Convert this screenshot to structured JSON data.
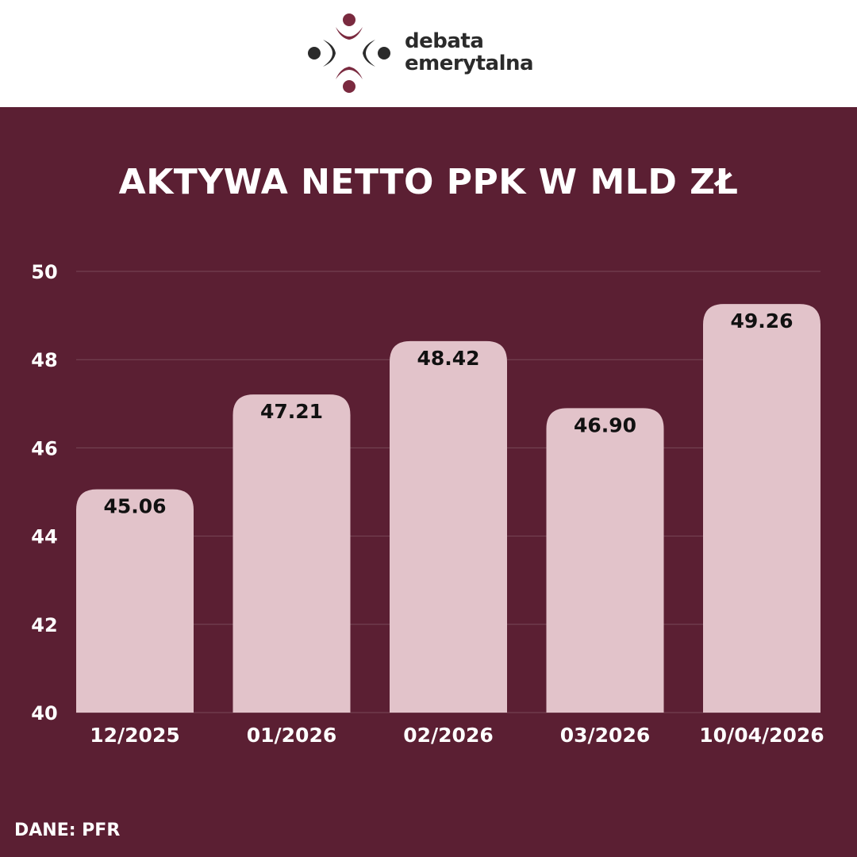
{
  "brand": {
    "line1": "debata",
    "line2": "emerytalna",
    "colors": {
      "maroon": "#7a2a3f",
      "dark": "#2b2b2b"
    }
  },
  "title": "AKTYWA NETTO PPK W MLD ZŁ",
  "source": "DANE: PFR",
  "colors": {
    "background": "#5b1f33",
    "bar": "#e2c3ca",
    "text": "#ffffff",
    "label": "#111111"
  },
  "chart_data": {
    "type": "bar",
    "title": "AKTYWA NETTO PPK W MLD ZŁ",
    "categories": [
      "12/2025",
      "01/2026",
      "02/2026",
      "03/2026",
      "10/04/2026"
    ],
    "values": [
      45.06,
      47.21,
      48.42,
      46.9,
      49.26
    ],
    "value_labels": [
      "45.06",
      "47.21",
      "48.42",
      "46.90",
      "49.26"
    ],
    "ylim": [
      40,
      50
    ],
    "yticks": [
      "40",
      "42",
      "44",
      "46",
      "48",
      "50"
    ],
    "grid": true,
    "legend": "none"
  }
}
